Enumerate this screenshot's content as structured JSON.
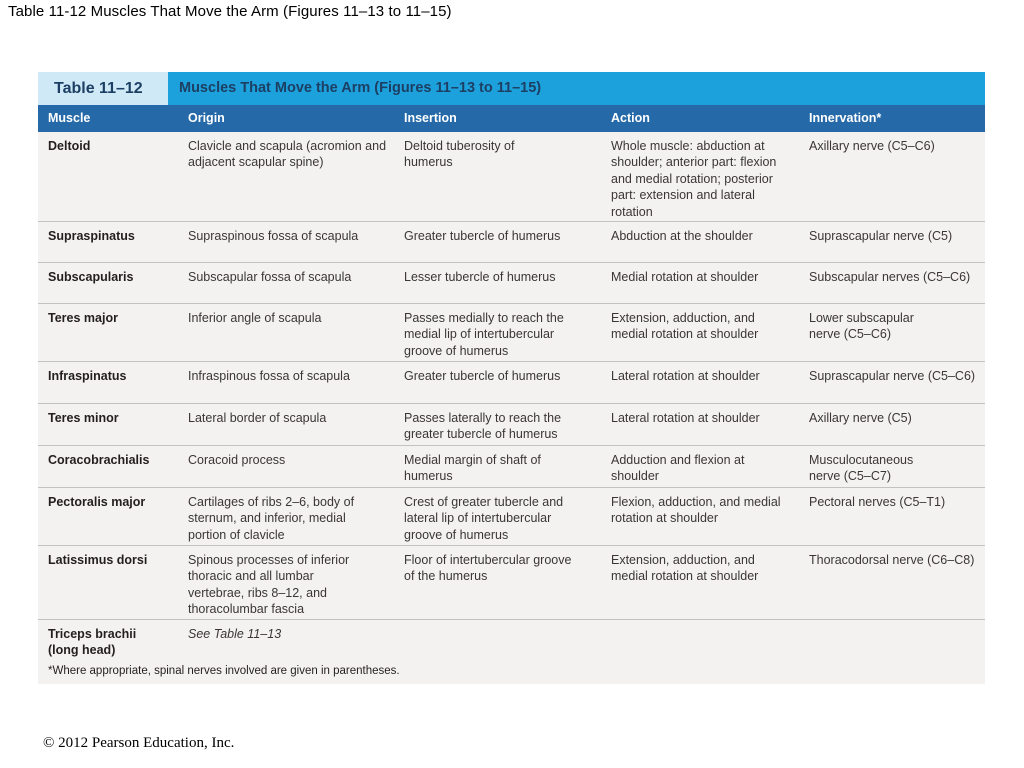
{
  "slide": {
    "title": "Table 11-12 Muscles That Move the Arm (Figures 11–13 to 11–15)",
    "copyright": "© 2012 Pearson Education, Inc."
  },
  "table": {
    "label": "Table 11–12",
    "title": "Muscles That Move the Arm (Figures 11–13 to 11–15)",
    "headers": [
      "Muscle",
      "Origin",
      "Insertion",
      "Action",
      "Innervation*"
    ],
    "rows": [
      {
        "muscle": "Deltoid",
        "origin": "Clavicle and scapula (acromion and adjacent scapular spine)",
        "insertion": "Deltoid tuberosity of humerus",
        "action": "Whole muscle: abduction at shoulder; anterior part: flexion and medial rotation; posterior part: extension and lateral rotation",
        "innervation": "Axillary nerve (C5–C6)"
      },
      {
        "muscle": "Supraspinatus",
        "origin": "Supraspinous fossa of scapula",
        "insertion": "Greater tubercle of humerus",
        "action": "Abduction at the shoulder",
        "innervation": "Suprascapular nerve (C5)"
      },
      {
        "muscle": "Subscapularis",
        "origin": "Subscapular fossa of scapula",
        "insertion": "Lesser tubercle of humerus",
        "action": "Medial rotation at shoulder",
        "innervation": "Subscapular nerves (C5–C6)"
      },
      {
        "muscle": "Teres major",
        "origin": "Inferior angle of scapula",
        "insertion": "Passes medially to reach the medial lip of intertubercular groove of humerus",
        "action": "Extension, adduction, and medial rotation at shoulder",
        "innervation": "Lower subscapular nerve (C5–C6)"
      },
      {
        "muscle": "Infraspinatus",
        "origin": "Infraspinous fossa of scapula",
        "insertion": "Greater tubercle of humerus",
        "action": "Lateral rotation at shoulder",
        "innervation": "Suprascapular nerve (C5–C6)"
      },
      {
        "muscle": "Teres minor",
        "origin": "Lateral border of scapula",
        "insertion": "Passes laterally to reach the greater tubercle of humerus",
        "action": "Lateral rotation at shoulder",
        "innervation": "Axillary nerve (C5)"
      },
      {
        "muscle": "Coracobrachialis",
        "origin": "Coracoid process",
        "insertion": "Medial margin of shaft of humerus",
        "action": "Adduction and flexion at shoulder",
        "innervation": "Musculocutaneous nerve (C5–C7)"
      },
      {
        "muscle": "Pectoralis major",
        "origin": "Cartilages of ribs 2–6, body of sternum, and inferior, medial portion of clavicle",
        "insertion": "Crest of greater tubercle and lateral lip of intertubercular groove of humerus",
        "action": "Flexion, adduction, and medial rotation at shoulder",
        "innervation": "Pectoral nerves (C5–T1)"
      },
      {
        "muscle": "Latissimus dorsi",
        "origin": "Spinous processes of inferior thoracic and all lumbar vertebrae, ribs 8–12, and thoracolumbar fascia",
        "insertion": "Floor of intertubercular groove of the humerus",
        "action": "Extension, adduction, and medial rotation at shoulder",
        "innervation": "Thoracodorsal nerve (C6–C8)"
      },
      {
        "muscle": "Triceps brachii (long head)",
        "origin": "See Table 11–13",
        "insertion": "",
        "action": "",
        "innervation": ""
      }
    ],
    "footnote": "*Where appropriate, spinal nerves involved are given in parentheses."
  }
}
